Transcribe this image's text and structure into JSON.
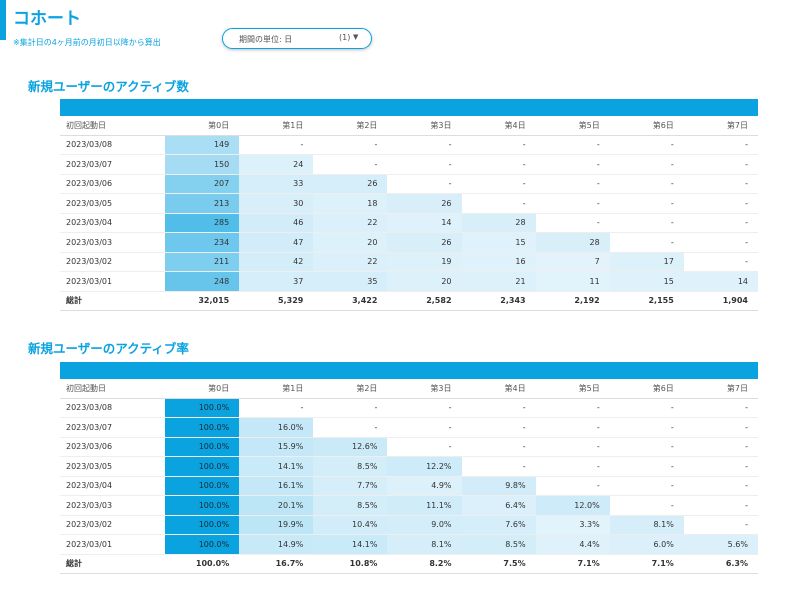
{
  "page": {
    "title": "コホート",
    "note": "※集計日の4ヶ月前の月初日以降から算出",
    "period": {
      "label": "期間の単位: 日",
      "count": "(1)",
      "chevron_icon": "caret-down-icon"
    }
  },
  "colors": {
    "accent": "#0aa3e0",
    "heat_max": "#0aa3e0",
    "heat_min": "#e8f5fc"
  },
  "tables": [
    {
      "title": "新規ユーザーのアクティブ数",
      "headers": [
        "初回起動日",
        "第0日",
        "第1日",
        "第2日",
        "第3日",
        "第4日",
        "第5日",
        "第6日",
        "第7日"
      ],
      "rows": [
        {
          "date": "2023/03/08",
          "cells": [
            "149",
            "-",
            "-",
            "-",
            "-",
            "-",
            "-",
            "-"
          ]
        },
        {
          "date": "2023/03/07",
          "cells": [
            "150",
            "24",
            "-",
            "-",
            "-",
            "-",
            "-",
            "-"
          ]
        },
        {
          "date": "2023/03/06",
          "cells": [
            "207",
            "33",
            "26",
            "-",
            "-",
            "-",
            "-",
            "-"
          ]
        },
        {
          "date": "2023/03/05",
          "cells": [
            "213",
            "30",
            "18",
            "26",
            "-",
            "-",
            "-",
            "-"
          ]
        },
        {
          "date": "2023/03/04",
          "cells": [
            "285",
            "46",
            "22",
            "14",
            "28",
            "-",
            "-",
            "-"
          ]
        },
        {
          "date": "2023/03/03",
          "cells": [
            "234",
            "47",
            "20",
            "26",
            "15",
            "28",
            "-",
            "-"
          ]
        },
        {
          "date": "2023/03/02",
          "cells": [
            "211",
            "42",
            "22",
            "19",
            "16",
            "7",
            "17",
            "-"
          ]
        },
        {
          "date": "2023/03/01",
          "cells": [
            "248",
            "37",
            "35",
            "20",
            "21",
            "11",
            "15",
            "14"
          ]
        }
      ],
      "shade": [
        [
          0.28,
          0,
          0,
          0,
          0,
          0,
          0,
          0
        ],
        [
          0.3,
          0.05,
          0,
          0,
          0,
          0,
          0,
          0
        ],
        [
          0.45,
          0.08,
          0.08,
          0,
          0,
          0,
          0,
          0
        ],
        [
          0.5,
          0.07,
          0.05,
          0.07,
          0,
          0,
          0,
          0
        ],
        [
          0.68,
          0.1,
          0.06,
          0.04,
          0.07,
          0,
          0,
          0
        ],
        [
          0.55,
          0.1,
          0.05,
          0.07,
          0.04,
          0.07,
          0,
          0
        ],
        [
          0.48,
          0.09,
          0.06,
          0.05,
          0.04,
          0.02,
          0.05,
          0
        ],
        [
          0.58,
          0.08,
          0.08,
          0.05,
          0.05,
          0.03,
          0.04,
          0.04
        ]
      ],
      "total": {
        "label": "総計",
        "cells": [
          "32,015",
          "5,329",
          "3,422",
          "2,582",
          "2,343",
          "2,192",
          "2,155",
          "1,904"
        ]
      }
    },
    {
      "title": "新規ユーザーのアクティブ率",
      "headers": [
        "初回起動日",
        "第0日",
        "第1日",
        "第2日",
        "第3日",
        "第4日",
        "第5日",
        "第6日",
        "第7日"
      ],
      "rows": [
        {
          "date": "2023/03/08",
          "cells": [
            "100.0%",
            "-",
            "-",
            "-",
            "-",
            "-",
            "-",
            "-"
          ]
        },
        {
          "date": "2023/03/07",
          "cells": [
            "100.0%",
            "16.0%",
            "-",
            "-",
            "-",
            "-",
            "-",
            "-"
          ]
        },
        {
          "date": "2023/03/06",
          "cells": [
            "100.0%",
            "15.9%",
            "12.6%",
            "-",
            "-",
            "-",
            "-",
            "-"
          ]
        },
        {
          "date": "2023/03/05",
          "cells": [
            "100.0%",
            "14.1%",
            "8.5%",
            "12.2%",
            "-",
            "-",
            "-",
            "-"
          ]
        },
        {
          "date": "2023/03/04",
          "cells": [
            "100.0%",
            "16.1%",
            "7.7%",
            "4.9%",
            "9.8%",
            "-",
            "-",
            "-"
          ]
        },
        {
          "date": "2023/03/03",
          "cells": [
            "100.0%",
            "20.1%",
            "8.5%",
            "11.1%",
            "6.4%",
            "12.0%",
            "-",
            "-"
          ]
        },
        {
          "date": "2023/03/02",
          "cells": [
            "100.0%",
            "19.9%",
            "10.4%",
            "9.0%",
            "7.6%",
            "3.3%",
            "8.1%",
            "-"
          ]
        },
        {
          "date": "2023/03/01",
          "cells": [
            "100.0%",
            "14.9%",
            "14.1%",
            "8.1%",
            "8.5%",
            "4.4%",
            "6.0%",
            "5.6%"
          ]
        }
      ],
      "shade": [
        [
          1,
          0,
          0,
          0,
          0,
          0,
          0,
          0
        ],
        [
          1,
          0.16,
          0,
          0,
          0,
          0,
          0,
          0
        ],
        [
          1,
          0.16,
          0.13,
          0,
          0,
          0,
          0,
          0
        ],
        [
          1,
          0.14,
          0.09,
          0.12,
          0,
          0,
          0,
          0
        ],
        [
          1,
          0.16,
          0.08,
          0.05,
          0.1,
          0,
          0,
          0
        ],
        [
          1,
          0.2,
          0.09,
          0.11,
          0.06,
          0.12,
          0,
          0
        ],
        [
          1,
          0.2,
          0.1,
          0.09,
          0.08,
          0.03,
          0.08,
          0
        ],
        [
          1,
          0.15,
          0.14,
          0.08,
          0.09,
          0.04,
          0.06,
          0.06
        ]
      ],
      "total": {
        "label": "総計",
        "cells": [
          "100.0%",
          "16.7%",
          "10.8%",
          "8.2%",
          "7.5%",
          "7.1%",
          "7.1%",
          "6.3%"
        ]
      }
    }
  ]
}
